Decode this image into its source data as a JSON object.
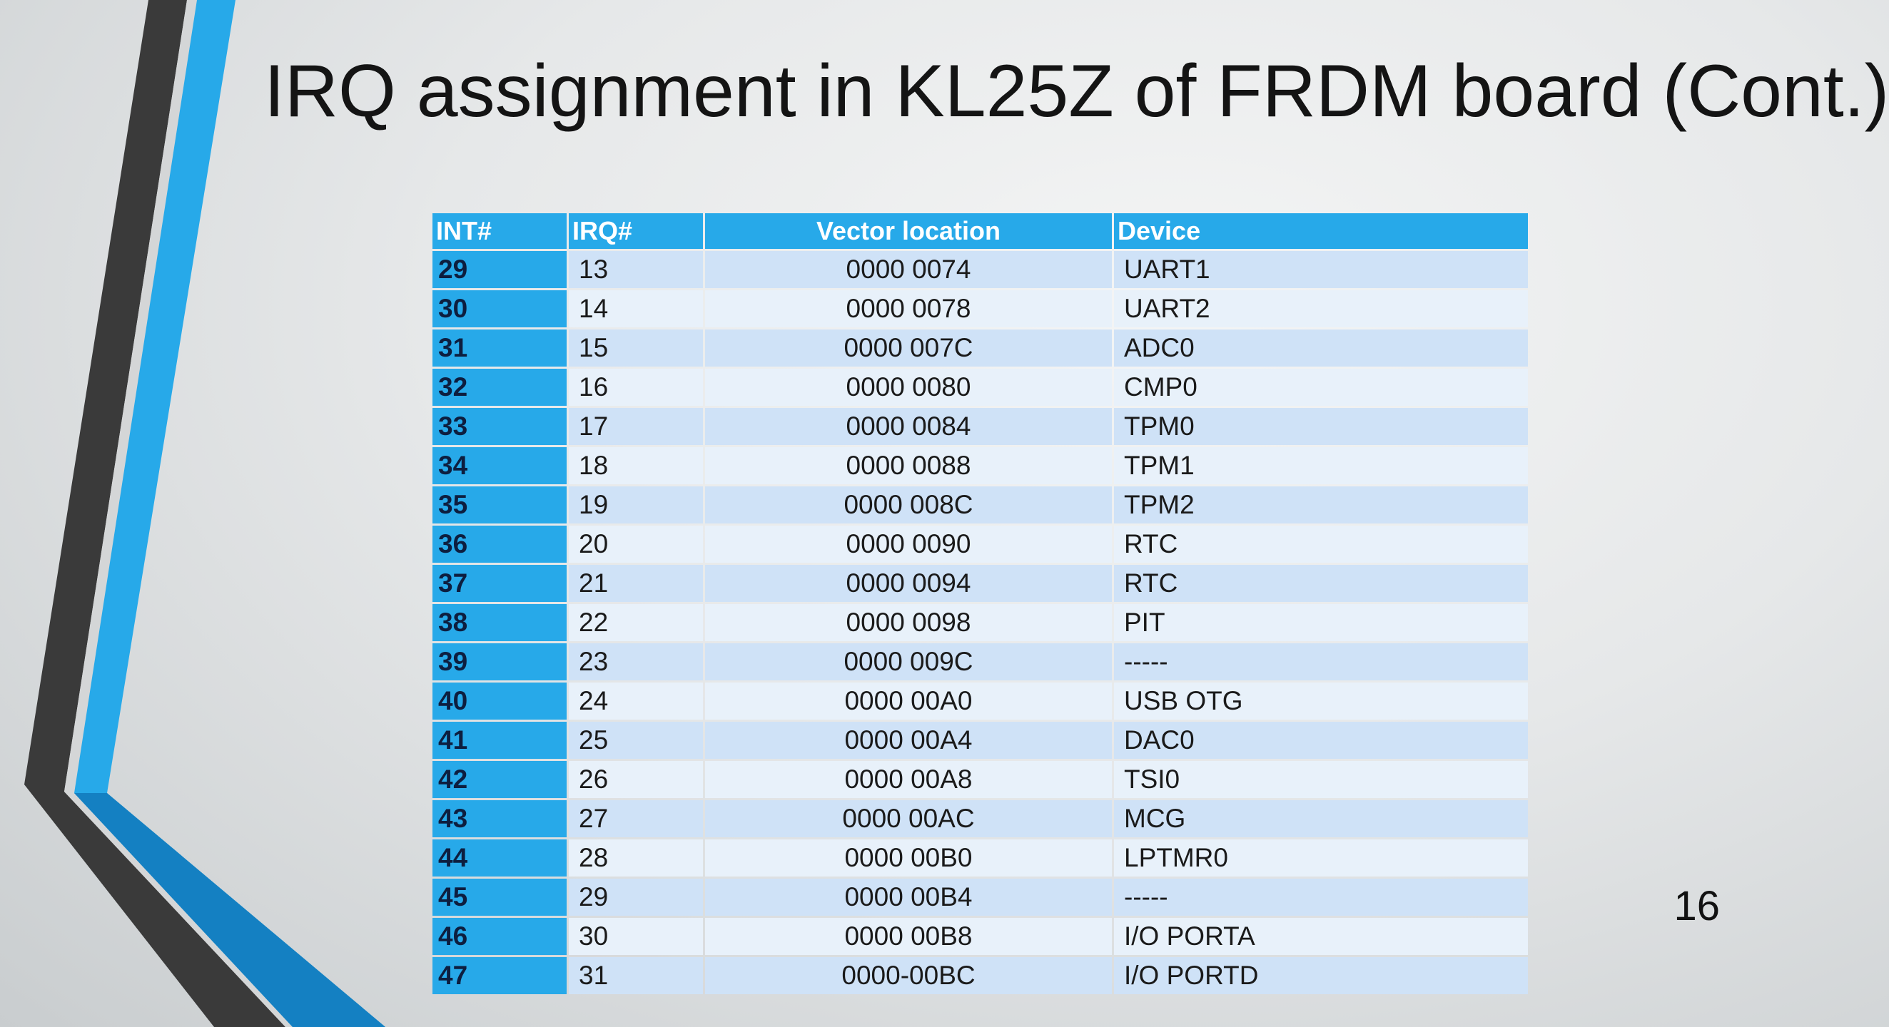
{
  "slide": {
    "title": "IRQ assignment in KL25Z of FRDM board (Cont.)",
    "page_number": "16"
  },
  "colors": {
    "accent_blue": "#27a9e9",
    "dark_blue": "#1480c2",
    "dark_gray": "#3a3a3a",
    "row_odd": "#cfe2f7",
    "row_even": "#e8f1fa"
  },
  "table": {
    "headers": [
      "INT#",
      "IRQ#",
      "Vector location",
      "Device"
    ],
    "rows": [
      {
        "int": "29",
        "irq": "13",
        "vector": "0000 0074",
        "device": "UART1"
      },
      {
        "int": "30",
        "irq": "14",
        "vector": "0000 0078",
        "device": "UART2"
      },
      {
        "int": "31",
        "irq": "15",
        "vector": "0000 007C",
        "device": "ADC0"
      },
      {
        "int": "32",
        "irq": "16",
        "vector": "0000 0080",
        "device": "CMP0"
      },
      {
        "int": "33",
        "irq": "17",
        "vector": "0000 0084",
        "device": "TPM0"
      },
      {
        "int": "34",
        "irq": "18",
        "vector": "0000 0088",
        "device": "TPM1"
      },
      {
        "int": "35",
        "irq": "19",
        "vector": "0000 008C",
        "device": "TPM2"
      },
      {
        "int": "36",
        "irq": "20",
        "vector": "0000 0090",
        "device": "RTC"
      },
      {
        "int": "37",
        "irq": "21",
        "vector": "0000 0094",
        "device": "RTC"
      },
      {
        "int": "38",
        "irq": "22",
        "vector": "0000 0098",
        "device": "PIT"
      },
      {
        "int": "39",
        "irq": "23",
        "vector": "0000 009C",
        "device": "-----"
      },
      {
        "int": "40",
        "irq": "24",
        "vector": "0000 00A0",
        "device": "USB OTG"
      },
      {
        "int": "41",
        "irq": "25",
        "vector": "0000 00A4",
        "device": "DAC0"
      },
      {
        "int": "42",
        "irq": "26",
        "vector": "0000 00A8",
        "device": "TSI0"
      },
      {
        "int": "43",
        "irq": "27",
        "vector": "0000 00AC",
        "device": "MCG"
      },
      {
        "int": "44",
        "irq": "28",
        "vector": "0000 00B0",
        "device": "LPTMR0"
      },
      {
        "int": "45",
        "irq": "29",
        "vector": "0000 00B4",
        "device": "-----"
      },
      {
        "int": "46",
        "irq": "30",
        "vector": "0000 00B8",
        "device": "I/O PORTA"
      },
      {
        "int": "47",
        "irq": "31",
        "vector": "0000-00BC",
        "device": "I/O PORTD"
      }
    ]
  }
}
